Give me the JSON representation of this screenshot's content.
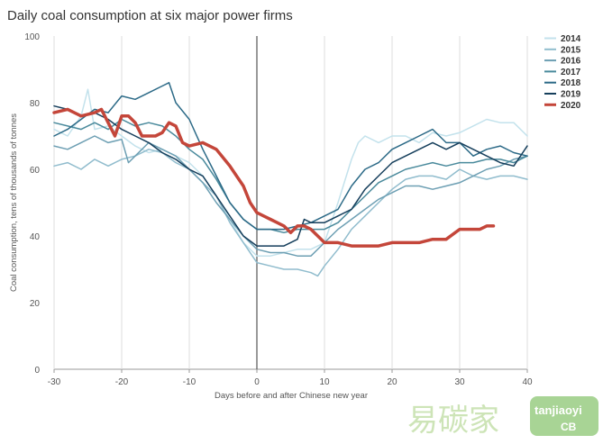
{
  "chart_data": {
    "type": "line",
    "title": "Daily coal consumption at six major power firms",
    "xlabel": "Days before and after Chinese new year",
    "ylabel": "Coal consumption, tens of thousands of tonnes",
    "xlim": [
      -30,
      40
    ],
    "ylim": [
      0,
      100
    ],
    "xticks": [
      -30,
      -20,
      -10,
      0,
      10,
      20,
      30,
      40
    ],
    "yticks": [
      0,
      20,
      40,
      60,
      80,
      100
    ],
    "xtick_labels": [
      "-30",
      "-20",
      "-10",
      "0",
      "10",
      "20",
      "30",
      "40"
    ],
    "ytick_labels": [
      "0",
      "20",
      "40",
      "60",
      "80",
      "100"
    ],
    "grid": "vertical",
    "legend_position": "top-right",
    "series": [
      {
        "name": "2014",
        "color": "#c3e2ec",
        "width": 1.5,
        "x": [
          -30,
          -28,
          -26,
          -25,
          -24,
          -22,
          -20,
          -18,
          -16,
          -14,
          -12,
          -10,
          -8,
          -6,
          -4,
          -2,
          0,
          2,
          4,
          6,
          8,
          10,
          12,
          14,
          15,
          16,
          18,
          20,
          22,
          24,
          26,
          28,
          30,
          32,
          34,
          36,
          38,
          40
        ],
        "y": [
          72,
          70,
          76,
          84,
          72,
          73,
          70,
          67,
          65,
          66,
          64,
          62,
          58,
          52,
          45,
          38,
          34,
          34,
          35,
          36,
          36,
          38,
          50,
          63,
          68,
          70,
          68,
          70,
          70,
          68,
          71,
          70,
          71,
          73,
          75,
          74,
          74,
          70
        ]
      },
      {
        "name": "2015",
        "color": "#90bccd",
        "width": 1.5,
        "x": [
          -30,
          -28,
          -26,
          -24,
          -22,
          -20,
          -18,
          -16,
          -14,
          -12,
          -10,
          -8,
          -6,
          -4,
          -2,
          0,
          2,
          4,
          6,
          8,
          9,
          10,
          12,
          14,
          16,
          18,
          20,
          22,
          24,
          26,
          28,
          30,
          32,
          34,
          36,
          38,
          40
        ],
        "y": [
          61,
          62,
          60,
          63,
          61,
          63,
          64,
          66,
          65,
          62,
          60,
          56,
          52,
          44,
          38,
          32,
          31,
          30,
          30,
          29,
          28,
          31,
          36,
          42,
          46,
          50,
          54,
          57,
          58,
          58,
          57,
          60,
          58,
          57,
          58,
          58,
          57
        ]
      },
      {
        "name": "2016",
        "color": "#6d9fb3",
        "width": 1.5,
        "x": [
          -30,
          -28,
          -26,
          -24,
          -22,
          -20,
          -19,
          -18,
          -16,
          -14,
          -12,
          -10,
          -8,
          -6,
          -4,
          -2,
          0,
          2,
          4,
          6,
          8,
          10,
          12,
          14,
          16,
          18,
          20,
          22,
          24,
          26,
          28,
          30,
          32,
          34,
          36,
          38,
          40
        ],
        "y": [
          67,
          66,
          68,
          70,
          68,
          69,
          62,
          64,
          68,
          66,
          64,
          60,
          56,
          50,
          45,
          40,
          36,
          35,
          35,
          34,
          34,
          38,
          42,
          45,
          48,
          51,
          53,
          55,
          55,
          54,
          55,
          56,
          58,
          60,
          61,
          63,
          64
        ]
      },
      {
        "name": "2017",
        "color": "#4a8a9c",
        "width": 1.5,
        "x": [
          -30,
          -28,
          -26,
          -24,
          -22,
          -20,
          -18,
          -16,
          -14,
          -12,
          -10,
          -8,
          -6,
          -4,
          -2,
          0,
          2,
          4,
          6,
          8,
          10,
          12,
          14,
          16,
          18,
          20,
          22,
          24,
          26,
          28,
          30,
          32,
          34,
          36,
          38,
          40
        ],
        "y": [
          74,
          73,
          72,
          74,
          72,
          75,
          73,
          74,
          73,
          70,
          66,
          63,
          57,
          50,
          45,
          42,
          42,
          41,
          42,
          42,
          42,
          44,
          48,
          52,
          56,
          58,
          60,
          61,
          62,
          61,
          62,
          62,
          63,
          63,
          62,
          64
        ]
      },
      {
        "name": "2018",
        "color": "#2c6a87",
        "width": 1.5,
        "x": [
          -30,
          -28,
          -26,
          -24,
          -22,
          -20,
          -18,
          -16,
          -14,
          -13,
          -12,
          -10,
          -8,
          -6,
          -4,
          -2,
          0,
          2,
          4,
          6,
          8,
          10,
          12,
          14,
          16,
          18,
          20,
          22,
          24,
          26,
          28,
          30,
          32,
          34,
          36,
          38,
          40
        ],
        "y": [
          70,
          72,
          75,
          78,
          77,
          82,
          81,
          83,
          85,
          86,
          80,
          75,
          66,
          58,
          50,
          45,
          42,
          42,
          42,
          43,
          44,
          46,
          48,
          55,
          60,
          62,
          66,
          68,
          70,
          72,
          68,
          68,
          64,
          66,
          67,
          65,
          64
        ]
      },
      {
        "name": "2019",
        "color": "#163f5c",
        "width": 1.5,
        "x": [
          -30,
          -28,
          -26,
          -24,
          -22,
          -20,
          -18,
          -16,
          -14,
          -12,
          -10,
          -8,
          -6,
          -4,
          -2,
          0,
          2,
          4,
          6,
          7,
          8,
          10,
          12,
          14,
          16,
          18,
          20,
          22,
          24,
          26,
          28,
          30,
          32,
          34,
          36,
          38,
          40
        ],
        "y": [
          79,
          78,
          76,
          77,
          75,
          72,
          70,
          68,
          65,
          63,
          60,
          58,
          52,
          46,
          40,
          37,
          37,
          37,
          39,
          45,
          44,
          44,
          46,
          48,
          54,
          58,
          62,
          64,
          66,
          68,
          66,
          68,
          66,
          64,
          62,
          61,
          67
        ]
      },
      {
        "name": "2020",
        "color": "#c4463a",
        "width": 3.5,
        "x": [
          -30,
          -28,
          -26,
          -24,
          -23,
          -22,
          -21,
          -20,
          -19,
          -18,
          -17,
          -16,
          -15,
          -14,
          -13,
          -12,
          -11,
          -10,
          -8,
          -6,
          -4,
          -2,
          -1,
          0,
          1,
          2,
          3,
          4,
          5,
          6,
          7,
          8,
          10,
          12,
          14,
          16,
          18,
          20,
          22,
          24,
          26,
          28,
          30,
          31,
          32,
          33,
          34,
          35
        ],
        "y": [
          77,
          78,
          76,
          77,
          78,
          74,
          70,
          76,
          76,
          74,
          70,
          70,
          70,
          71,
          74,
          73,
          68,
          67,
          68,
          66,
          61,
          55,
          50,
          47,
          46,
          45,
          44,
          43,
          41,
          43,
          43,
          42,
          38,
          38,
          37,
          37,
          37,
          38,
          38,
          38,
          39,
          39,
          42,
          42,
          42,
          42,
          43,
          43
        ]
      }
    ]
  },
  "watermark": {
    "cn": "易碳家",
    "en": "tanjiaoyi",
    "badge": "CB"
  }
}
